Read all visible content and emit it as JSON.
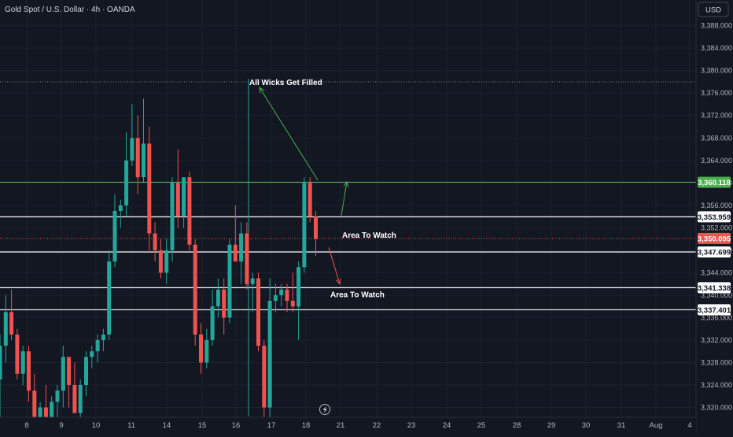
{
  "header": {
    "title": "Gold Spot / U.S. Dollar · 4h · OANDA"
  },
  "currency_badge": "USD",
  "colors": {
    "background": "#131722",
    "up": "#26a69a",
    "down": "#ef5350",
    "green_line": "#4caf50",
    "text": "#b2b5be"
  },
  "chart_data": {
    "type": "candlestick",
    "title": "Gold Spot / U.S. Dollar · 4h · OANDA",
    "currency": "USD",
    "ylim": [
      3318,
      3392
    ],
    "y_ticks": [
      "3,320.000",
      "3,324.000",
      "3,328.000",
      "3,332.000",
      "3,336.000",
      "3,340.000",
      "3,344.000",
      "3,348.000",
      "3,352.000",
      "3,356.000",
      "3,360.000",
      "3,364.000",
      "3,368.000",
      "3,372.000",
      "3,376.000",
      "3,380.000",
      "3,384.000",
      "3,388.000"
    ],
    "x_ticks": [
      "8",
      "9",
      "10",
      "11",
      "14",
      "15",
      "16",
      "17",
      "18",
      "21",
      "22",
      "23",
      "24",
      "25",
      "28",
      "29",
      "30",
      "31",
      "Aug",
      "4"
    ],
    "candles": [
      {
        "o": 3325,
        "h": 3333,
        "l": 3318,
        "c": 3331
      },
      {
        "o": 3331,
        "h": 3340,
        "l": 3328,
        "c": 3337
      },
      {
        "o": 3337,
        "h": 3341,
        "l": 3332,
        "c": 3333
      },
      {
        "o": 3333,
        "h": 3334,
        "l": 3325,
        "c": 3326
      },
      {
        "o": 3326,
        "h": 3331,
        "l": 3324,
        "c": 3330
      },
      {
        "o": 3330,
        "h": 3331,
        "l": 3321,
        "c": 3323
      },
      {
        "o": 3323,
        "h": 3326,
        "l": 3315,
        "c": 3318
      },
      {
        "o": 3318,
        "h": 3321,
        "l": 3314,
        "c": 3320
      },
      {
        "o": 3320,
        "h": 3324,
        "l": 3317,
        "c": 3318
      },
      {
        "o": 3318,
        "h": 3322,
        "l": 3316,
        "c": 3321
      },
      {
        "o": 3321,
        "h": 3324,
        "l": 3318,
        "c": 3323
      },
      {
        "o": 3323,
        "h": 3331,
        "l": 3320,
        "c": 3329
      },
      {
        "o": 3329,
        "h": 3329,
        "l": 3320,
        "c": 3324
      },
      {
        "o": 3324,
        "h": 3328,
        "l": 3319,
        "c": 3319
      },
      {
        "o": 3319,
        "h": 3325,
        "l": 3318,
        "c": 3324
      },
      {
        "o": 3324,
        "h": 3330,
        "l": 3322,
        "c": 3329
      },
      {
        "o": 3329,
        "h": 3331,
        "l": 3327,
        "c": 3330
      },
      {
        "o": 3330,
        "h": 3333,
        "l": 3328,
        "c": 3332
      },
      {
        "o": 3332,
        "h": 3334,
        "l": 3330,
        "c": 3333
      },
      {
        "o": 3333,
        "h": 3348,
        "l": 3332,
        "c": 3346
      },
      {
        "o": 3346,
        "h": 3358,
        "l": 3345,
        "c": 3355
      },
      {
        "o": 3355,
        "h": 3357,
        "l": 3352,
        "c": 3356
      },
      {
        "o": 3356,
        "h": 3369,
        "l": 3354,
        "c": 3364
      },
      {
        "o": 3364,
        "h": 3374,
        "l": 3363,
        "c": 3368
      },
      {
        "o": 3368,
        "h": 3372,
        "l": 3358,
        "c": 3361
      },
      {
        "o": 3361,
        "h": 3375,
        "l": 3360,
        "c": 3367
      },
      {
        "o": 3367,
        "h": 3370,
        "l": 3348,
        "c": 3351
      },
      {
        "o": 3351,
        "h": 3353,
        "l": 3346,
        "c": 3348
      },
      {
        "o": 3348,
        "h": 3350,
        "l": 3343,
        "c": 3344
      },
      {
        "o": 3344,
        "h": 3350,
        "l": 3342,
        "c": 3348
      },
      {
        "o": 3348,
        "h": 3361,
        "l": 3346,
        "c": 3360
      },
      {
        "o": 3360,
        "h": 3366,
        "l": 3352,
        "c": 3354
      },
      {
        "o": 3354,
        "h": 3361,
        "l": 3352,
        "c": 3361
      },
      {
        "o": 3361,
        "h": 3362,
        "l": 3348,
        "c": 3349
      },
      {
        "o": 3349,
        "h": 3350,
        "l": 3331,
        "c": 3333
      },
      {
        "o": 3333,
        "h": 3335,
        "l": 3326,
        "c": 3328
      },
      {
        "o": 3328,
        "h": 3334,
        "l": 3327,
        "c": 3332
      },
      {
        "o": 3332,
        "h": 3341,
        "l": 3331,
        "c": 3338
      },
      {
        "o": 3338,
        "h": 3343,
        "l": 3336,
        "c": 3341
      },
      {
        "o": 3341,
        "h": 3343,
        "l": 3333,
        "c": 3336
      },
      {
        "o": 3336,
        "h": 3350,
        "l": 3335,
        "c": 3349
      },
      {
        "o": 3349,
        "h": 3356,
        "l": 3346,
        "c": 3346
      },
      {
        "o": 3346,
        "h": 3353,
        "l": 3342,
        "c": 3351
      },
      {
        "o": 3351,
        "h": 3353,
        "l": 3341,
        "c": 3342
      },
      {
        "o": 3342,
        "h": 3344,
        "l": 3337,
        "c": 3343
      },
      {
        "o": 3343,
        "h": 3344,
        "l": 3330,
        "c": 3331
      },
      {
        "o": 3331,
        "h": 3332,
        "l": 3318,
        "c": 3320
      },
      {
        "o": 3320,
        "h": 3343,
        "l": 3318,
        "c": 3339
      },
      {
        "o": 3339,
        "h": 3342,
        "l": 3337,
        "c": 3340
      },
      {
        "o": 3340,
        "h": 3342,
        "l": 3338,
        "c": 3341
      },
      {
        "o": 3341,
        "h": 3342,
        "l": 3337,
        "c": 3339
      },
      {
        "o": 3339,
        "h": 3344,
        "l": 3337,
        "c": 3338
      },
      {
        "o": 3338,
        "h": 3346,
        "l": 3332,
        "c": 3345
      },
      {
        "o": 3345,
        "h": 3361,
        "l": 3344,
        "c": 3360
      },
      {
        "o": 3360,
        "h": 3361,
        "l": 3353,
        "c": 3354
      },
      {
        "o": 3354,
        "h": 3355,
        "l": 3347,
        "c": 3350
      }
    ],
    "horizontal_levels": [
      {
        "value": 3360.118,
        "label": "3,360.118",
        "color": "#4caf50",
        "tag_fill": "#4caf50",
        "tag_text": "#ffffff"
      },
      {
        "value": 3353.959,
        "label": "3,353.959",
        "color": "#ffffff",
        "tag_fill": "#ffffff",
        "tag_text": "#131722"
      },
      {
        "value": 3347.699,
        "label": "3,347.699",
        "color": "#ffffff",
        "tag_fill": "#ffffff",
        "tag_text": "#131722"
      },
      {
        "value": 3341.338,
        "label": "3,341.338",
        "color": "#ffffff",
        "tag_fill": "#ffffff",
        "tag_text": "#131722"
      },
      {
        "value": 3337.401,
        "label": "3,337.401",
        "color": "#ffffff",
        "tag_fill": "#ffffff",
        "tag_text": "#131722"
      }
    ],
    "current_price": {
      "value": 3350.095,
      "label": "3,350.095",
      "color": "#ef5350"
    },
    "dotted_level": {
      "value": 3378
    },
    "annotations": [
      {
        "text": "All Wicks Get Filled",
        "x": 3317,
        "y": 3378
      },
      {
        "text": "Area To Watch",
        "x": 435,
        "y": 3350.8
      },
      {
        "text": "Area To Watch",
        "x": 420,
        "y": 3340.2
      }
    ]
  }
}
